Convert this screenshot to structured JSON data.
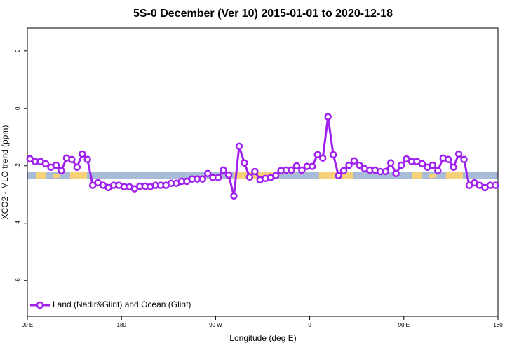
{
  "chart_data": {
    "type": "line",
    "title": "5S-0 December (Ver 10)   2015-01-01 to 2020-12-18",
    "x_label": "Longitude (deg E)",
    "y_label": "XCO2 - MLO trend (ppm)",
    "xlim": [
      90,
      540
    ],
    "ylim": [
      -7.25,
      2.8
    ],
    "xticks": [
      {
        "value": 90,
        "label": "90 E"
      },
      180,
      {
        "value": 270,
        "label": "90 W"
      },
      {
        "value": 360,
        "label": "0"
      },
      {
        "value": 450,
        "label": "90 E"
      },
      {
        "value": 540,
        "label": "180"
      }
    ],
    "yticks": [
      2,
      0,
      -2,
      -4,
      -6
    ],
    "legend_position": "bottom-left",
    "x": [
      92.5,
      97.5,
      102.5,
      107.5,
      112.5,
      117.5,
      122.5,
      127.5,
      132.5,
      137.5,
      142.5,
      147.5,
      152.5,
      157.5,
      162.5,
      167.5,
      172.5,
      177.5,
      182.5,
      187.5,
      192.5,
      197.5,
      202.5,
      207.5,
      212.5,
      217.5,
      222.5,
      227.5,
      232.5,
      237.5,
      242.5,
      247.5,
      252.5,
      257.5,
      262.5,
      267.5,
      272.5,
      277.5,
      282.5,
      287.5,
      292.5,
      297.5,
      302.5,
      307.5,
      312.5,
      317.5,
      322.5,
      327.5,
      332.5,
      337.5,
      342.5,
      347.5,
      352.5,
      357.5,
      362.5,
      367.5,
      372.5,
      377.5,
      382.5,
      387.5,
      392.5,
      397.5,
      402.5,
      407.5,
      412.5,
      417.5,
      422.5,
      427.5,
      432.5,
      437.5,
      442.5,
      447.5,
      452.5,
      457.5,
      462.5,
      467.5,
      472.5,
      477.5,
      482.5,
      487.5,
      492.5,
      497.5,
      502.5,
      507.5,
      512.5,
      517.5,
      522.5,
      527.5,
      532.5,
      537.5
    ],
    "series": [
      {
        "name": "Land (Nadir&Glint) and Ocean (Glint)",
        "color": "#a020f0",
        "values": [
          -1.76,
          -1.85,
          -1.85,
          -1.93,
          -2.05,
          -1.98,
          -2.17,
          -1.73,
          -1.78,
          -2.05,
          -1.59,
          -1.78,
          -2.68,
          -2.59,
          -2.68,
          -2.76,
          -2.68,
          -2.68,
          -2.73,
          -2.73,
          -2.8,
          -2.71,
          -2.71,
          -2.73,
          -2.68,
          -2.68,
          -2.68,
          -2.61,
          -2.61,
          -2.54,
          -2.54,
          -2.46,
          -2.46,
          -2.46,
          -2.27,
          -2.41,
          -2.41,
          -2.15,
          -2.32,
          -3.05,
          -1.32,
          -1.9,
          -2.39,
          -2.2,
          -2.49,
          -2.44,
          -2.41,
          -2.34,
          -2.17,
          -2.15,
          -2.15,
          -2.0,
          -2.15,
          -2.02,
          -2.02,
          -1.61,
          -1.73,
          -0.29,
          -1.61,
          -2.34,
          -2.17,
          -1.98,
          -1.83,
          -1.98,
          -2.1,
          -2.15,
          -2.15,
          -2.2,
          -2.2,
          -1.9,
          -2.27,
          -1.98,
          -1.76,
          -1.85,
          -1.85,
          -1.93,
          -2.05,
          -1.98,
          -2.17,
          -1.73,
          -1.78,
          -2.05,
          -1.59,
          -1.78,
          -2.68,
          -2.59,
          -2.68,
          -2.76,
          -2.68,
          -2.68
        ]
      }
    ]
  }
}
